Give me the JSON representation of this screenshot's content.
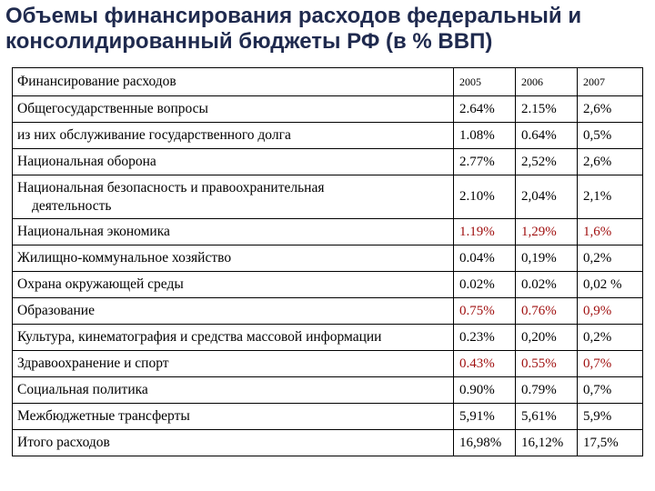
{
  "title": "Объемы финансирования расходов федеральный и консолидированный бюджеты РФ (в % ВВП)",
  "colors": {
    "title": "#1f2a4e",
    "highlight": "#a01010"
  },
  "table": {
    "header": {
      "label": "Финансирование расходов",
      "years": [
        "2005",
        "2006",
        "2007"
      ]
    },
    "rows": [
      {
        "label": "Общегосударственные вопросы",
        "values": [
          "2.64%",
          "2.15%",
          "2,6%"
        ],
        "highlight": false
      },
      {
        "label": "из них обслуживание государственного долга",
        "values": [
          "1.08%",
          "0.64%",
          "0,5%"
        ],
        "highlight": false
      },
      {
        "label": "Национальная оборона",
        "values": [
          "2.77%",
          "2,52%",
          "2,6%"
        ],
        "highlight": false
      },
      {
        "label": "Национальная безопасность и правоохранительная",
        "label2": "деятельность",
        "values": [
          "2.10%",
          "2,04%",
          "2,1%"
        ],
        "highlight": false
      },
      {
        "label": "Национальная экономика",
        "values": [
          "1.19%",
          "1,29%",
          "1,6%"
        ],
        "highlight": true
      },
      {
        "label": "Жилищно-коммунальное хозяйство",
        "values": [
          "0.04%",
          "0,19%",
          "0,2%"
        ],
        "highlight": false
      },
      {
        "label": "Охрана окружающей среды",
        "values": [
          "0.02%",
          "0.02%",
          "0,02 %"
        ],
        "highlight": false
      },
      {
        "label": "Образование",
        "values": [
          "0.75%",
          "0.76%",
          "0,9%"
        ],
        "highlight": true
      },
      {
        "label": "Культура, кинематография и средства массовой информации",
        "values": [
          "0.23%",
          "0,20%",
          "0,2%"
        ],
        "highlight": false
      },
      {
        "label": "Здравоохранение и спорт",
        "values": [
          "0.43%",
          "0.55%",
          "0,7%"
        ],
        "highlight": true
      },
      {
        "label": "Социальная политика",
        "values": [
          "0.90%",
          "0.79%",
          "0,7%"
        ],
        "highlight": false
      },
      {
        "label": "Межбюджетные трансферты",
        "values": [
          "5,91%",
          "5,61%",
          "5,9%"
        ],
        "highlight": false
      },
      {
        "label": "Итого расходов",
        "values": [
          "16,98%",
          "16,12%",
          "17,5%"
        ],
        "highlight": false
      }
    ]
  }
}
